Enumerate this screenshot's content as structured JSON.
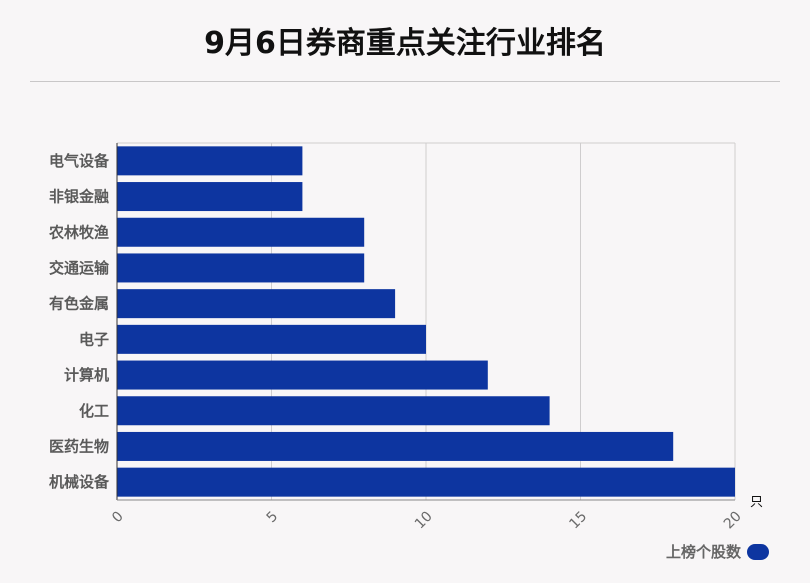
{
  "chart_data": {
    "type": "bar",
    "orientation": "horizontal",
    "title": "9月6日券商重点关注行业排名",
    "categories": [
      "电气设备",
      "非银金融",
      "农林牧渔",
      "交通运输",
      "有色金属",
      "电子",
      "计算机",
      "化工",
      "医药生物",
      "机械设备"
    ],
    "series": [
      {
        "name": "上榜个股数",
        "values": [
          6,
          6,
          8,
          8,
          9,
          10,
          12,
          14,
          18,
          20
        ]
      }
    ],
    "xlim": [
      0,
      20
    ],
    "xticks": [
      0,
      5,
      10,
      15,
      20
    ],
    "xunit": "只",
    "grid": true,
    "legend_position": "bottom-right",
    "bar_color": "#0d35a0"
  }
}
